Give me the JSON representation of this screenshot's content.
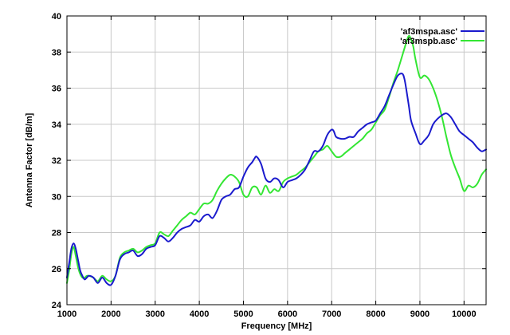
{
  "chart_data": {
    "type": "line",
    "title": "",
    "xlabel": "Frequency [MHz]",
    "ylabel": "Antenna Factor [dB/m]",
    "xlim": [
      1000,
      10500
    ],
    "ylim": [
      24,
      40
    ],
    "xticks": [
      1000,
      2000,
      3000,
      4000,
      5000,
      6000,
      7000,
      8000,
      9000,
      10000
    ],
    "yticks": [
      24,
      26,
      28,
      30,
      32,
      34,
      36,
      38,
      40
    ],
    "grid": true,
    "legend_position": "top-right",
    "series": [
      {
        "name": "'af3mspa.asc'",
        "color": "#1a1acd",
        "x": [
          1000,
          1050,
          1100,
          1150,
          1200,
          1250,
          1300,
          1350,
          1400,
          1450,
          1500,
          1600,
          1700,
          1800,
          1900,
          2000,
          2100,
          2200,
          2300,
          2400,
          2500,
          2600,
          2700,
          2800,
          2900,
          3000,
          3100,
          3200,
          3300,
          3400,
          3500,
          3600,
          3700,
          3800,
          3900,
          4000,
          4100,
          4200,
          4300,
          4400,
          4500,
          4600,
          4700,
          4800,
          4900,
          5000,
          5100,
          5200,
          5250,
          5300,
          5400,
          5500,
          5600,
          5700,
          5800,
          5900,
          6000,
          6100,
          6200,
          6300,
          6400,
          6500,
          6600,
          6700,
          6800,
          6900,
          7000,
          7050,
          7100,
          7200,
          7300,
          7400,
          7500,
          7600,
          7700,
          7800,
          7900,
          8000,
          8100,
          8200,
          8300,
          8400,
          8500,
          8600,
          8650,
          8700,
          8750,
          8800,
          8900,
          9000,
          9100,
          9200,
          9300,
          9400,
          9500,
          9600,
          9700,
          9800,
          9900,
          10000,
          10100,
          10200,
          10300,
          10400,
          10500
        ],
        "y": [
          25.5,
          26.3,
          27.1,
          27.4,
          27.1,
          26.5,
          25.9,
          25.6,
          25.4,
          25.5,
          25.6,
          25.5,
          25.2,
          25.5,
          25.2,
          25.1,
          25.6,
          26.5,
          26.8,
          26.9,
          27.0,
          26.7,
          26.8,
          27.1,
          27.2,
          27.3,
          27.8,
          27.7,
          27.5,
          27.7,
          28.0,
          28.2,
          28.3,
          28.4,
          28.7,
          28.6,
          28.9,
          29.0,
          28.8,
          29.2,
          29.8,
          30.0,
          30.1,
          30.4,
          30.5,
          31.1,
          31.6,
          31.9,
          32.1,
          32.2,
          31.8,
          31.0,
          30.8,
          31.0,
          30.9,
          30.5,
          30.8,
          30.9,
          31.0,
          31.2,
          31.5,
          32.0,
          32.5,
          32.5,
          32.8,
          33.4,
          33.7,
          33.6,
          33.3,
          33.2,
          33.2,
          33.3,
          33.3,
          33.6,
          33.8,
          34.0,
          34.1,
          34.2,
          34.6,
          35.0,
          35.6,
          36.2,
          36.7,
          36.8,
          36.5,
          35.8,
          35.0,
          34.2,
          33.5,
          32.9,
          33.1,
          33.4,
          34.0,
          34.3,
          34.5,
          34.6,
          34.4,
          34.0,
          33.6,
          33.4,
          33.2,
          33.0,
          32.7,
          32.5,
          32.6
        ]
      },
      {
        "name": "'af3mspb.asc'",
        "color": "#33e633",
        "x": [
          1000,
          1050,
          1100,
          1150,
          1200,
          1250,
          1300,
          1350,
          1400,
          1450,
          1500,
          1600,
          1700,
          1800,
          1900,
          2000,
          2100,
          2200,
          2300,
          2400,
          2500,
          2600,
          2700,
          2800,
          2900,
          3000,
          3100,
          3200,
          3300,
          3400,
          3500,
          3600,
          3700,
          3800,
          3900,
          4000,
          4100,
          4200,
          4300,
          4400,
          4500,
          4600,
          4700,
          4800,
          4900,
          5000,
          5100,
          5200,
          5300,
          5400,
          5500,
          5600,
          5700,
          5800,
          5900,
          6000,
          6100,
          6200,
          6300,
          6400,
          6500,
          6600,
          6700,
          6800,
          6900,
          7000,
          7100,
          7200,
          7300,
          7400,
          7500,
          7600,
          7700,
          7800,
          7900,
          8000,
          8100,
          8200,
          8300,
          8400,
          8500,
          8600,
          8700,
          8750,
          8800,
          8850,
          8900,
          9000,
          9100,
          9200,
          9300,
          9400,
          9500,
          9600,
          9700,
          9800,
          9900,
          10000,
          10100,
          10200,
          10300,
          10400,
          10500
        ],
        "y": [
          25.2,
          25.9,
          26.8,
          27.2,
          26.7,
          26.1,
          25.7,
          25.5,
          25.5,
          25.6,
          25.6,
          25.5,
          25.3,
          25.6,
          25.4,
          25.3,
          25.6,
          26.6,
          26.9,
          27.0,
          27.1,
          26.9,
          27.0,
          27.2,
          27.3,
          27.4,
          28.0,
          27.9,
          27.8,
          28.1,
          28.4,
          28.7,
          28.9,
          29.1,
          29.0,
          29.3,
          29.6,
          29.6,
          29.8,
          30.3,
          30.7,
          31.0,
          31.2,
          31.1,
          30.8,
          30.1,
          30.0,
          30.5,
          30.5,
          30.1,
          30.6,
          30.2,
          30.4,
          30.3,
          30.8,
          31.0,
          31.1,
          31.2,
          31.4,
          31.6,
          31.9,
          32.2,
          32.5,
          32.6,
          32.8,
          32.5,
          32.2,
          32.2,
          32.4,
          32.6,
          32.8,
          33.0,
          33.2,
          33.5,
          33.7,
          34.1,
          34.5,
          34.8,
          35.5,
          36.3,
          37.0,
          37.8,
          38.6,
          38.9,
          38.7,
          38.3,
          37.6,
          36.6,
          36.7,
          36.5,
          36.0,
          35.3,
          34.4,
          33.3,
          32.3,
          31.6,
          31.0,
          30.3,
          30.6,
          30.5,
          30.7,
          31.2,
          31.5
        ]
      }
    ]
  }
}
